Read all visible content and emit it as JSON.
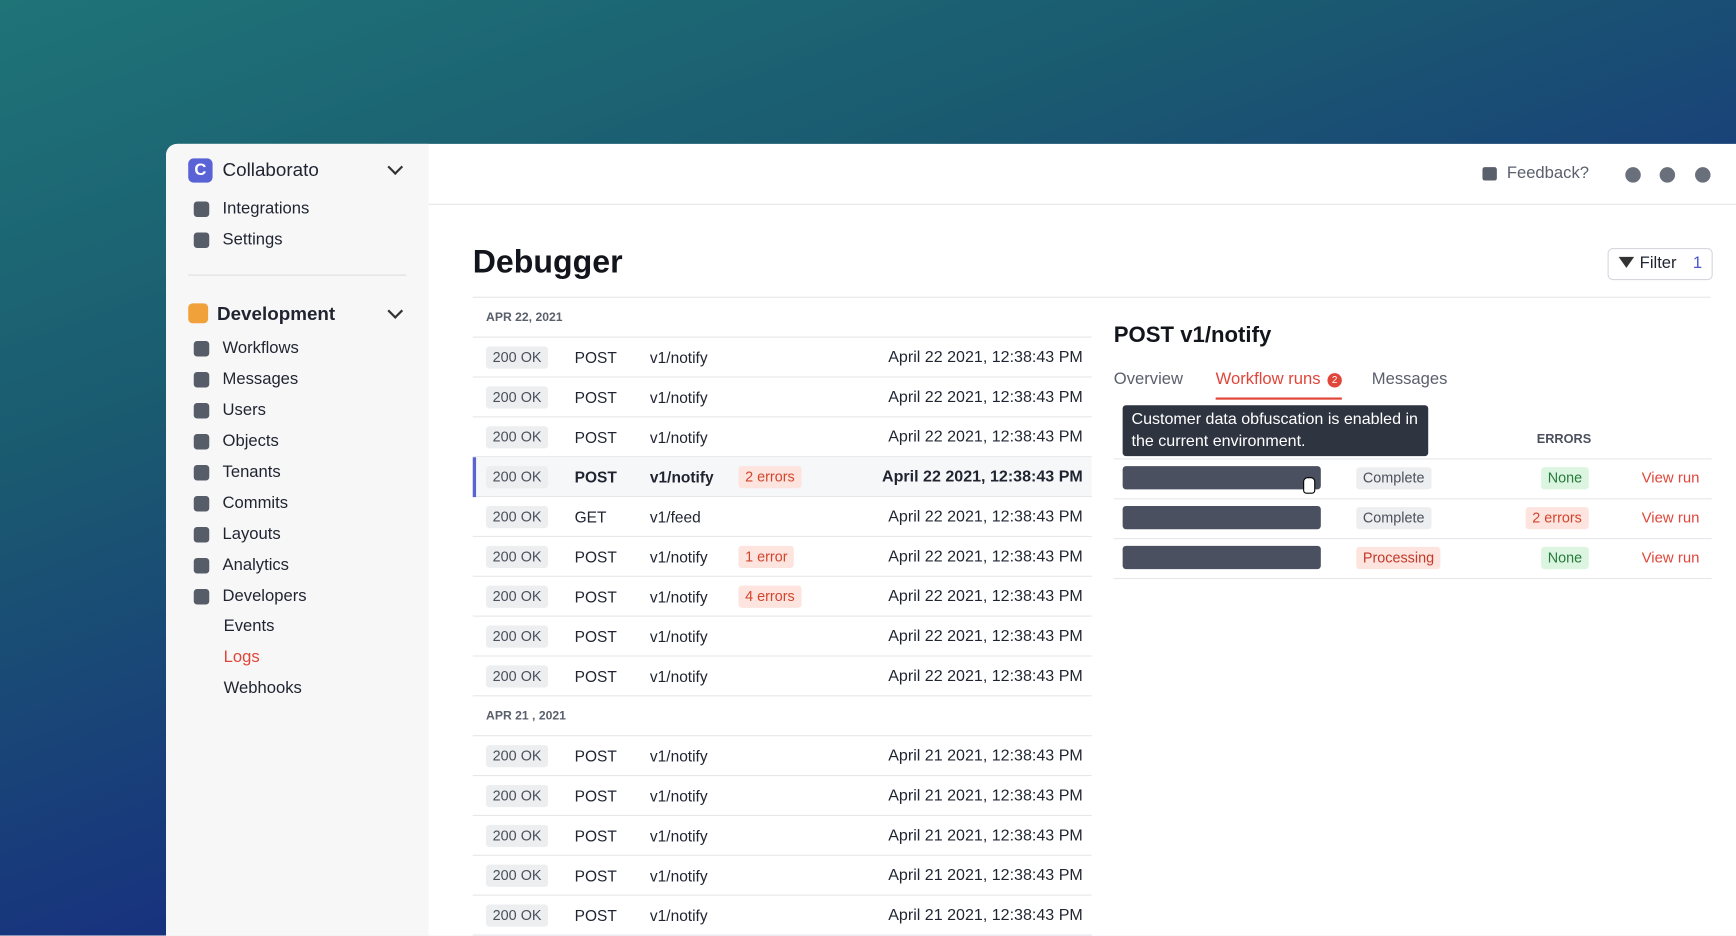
{
  "sidebar": {
    "workspace": "Collaborato",
    "workspace_initial": "C",
    "top_nav": [
      "Integrations",
      "Settings"
    ],
    "environment": "Development",
    "nav": [
      "Workflows",
      "Messages",
      "Users",
      "Objects",
      "Tenants",
      "Commits",
      "Layouts",
      "Analytics",
      "Developers"
    ],
    "sub_nav": [
      "Events",
      "Logs",
      "Webhooks"
    ],
    "active_sub": "Logs"
  },
  "header": {
    "feedback": "Feedback?"
  },
  "main": {
    "title": "Debugger",
    "filter": "Filter",
    "filter_count": "1",
    "groups": [
      {
        "date": "APR 22, 2021",
        "rows": [
          {
            "status": "200 OK",
            "method": "POST",
            "path": "v1/notify",
            "time": "April 22 2021, 12:38:43 PM"
          },
          {
            "status": "200 OK",
            "method": "POST",
            "path": "v1/notify",
            "time": "April 22 2021, 12:38:43 PM"
          },
          {
            "status": "200 OK",
            "method": "POST",
            "path": "v1/notify",
            "time": "April 22 2021, 12:38:43 PM"
          },
          {
            "status": "200 OK",
            "method": "POST",
            "path": "v1/notify",
            "errors": "2 errors",
            "time": "April 22 2021, 12:38:43 PM",
            "selected": true
          },
          {
            "status": "200 OK",
            "method": "GET",
            "path": "v1/feed",
            "time": "April 22 2021, 12:38:43 PM"
          },
          {
            "status": "200 OK",
            "method": "POST",
            "path": "v1/notify",
            "errors": "1 error",
            "time": "April 22 2021, 12:38:43 PM"
          },
          {
            "status": "200 OK",
            "method": "POST",
            "path": "v1/notify",
            "errors": "4 errors",
            "time": "April 22 2021, 12:38:43 PM"
          },
          {
            "status": "200 OK",
            "method": "POST",
            "path": "v1/notify",
            "time": "April 22 2021, 12:38:43 PM"
          },
          {
            "status": "200 OK",
            "method": "POST",
            "path": "v1/notify",
            "time": "April 22 2021, 12:38:43 PM"
          }
        ]
      },
      {
        "date": "APR 21 , 2021",
        "rows": [
          {
            "status": "200 OK",
            "method": "POST",
            "path": "v1/notify",
            "time": "April 21 2021, 12:38:43 PM"
          },
          {
            "status": "200 OK",
            "method": "POST",
            "path": "v1/notify",
            "time": "April 21 2021, 12:38:43 PM"
          },
          {
            "status": "200 OK",
            "method": "POST",
            "path": "v1/notify",
            "time": "April 21 2021, 12:38:43 PM"
          },
          {
            "status": "200 OK",
            "method": "POST",
            "path": "v1/notify",
            "time": "April 21 2021, 12:38:43 PM"
          },
          {
            "status": "200 OK",
            "method": "POST",
            "path": "v1/notify",
            "time": "April 21 2021, 12:38:43 PM"
          }
        ]
      }
    ]
  },
  "detail": {
    "title": "POST v1/notify",
    "tabs": [
      "Overview",
      "Workflow runs",
      "Messages"
    ],
    "active_tab": "Workflow runs",
    "tab_badge": "2",
    "tooltip": "Customer data obfuscation is enabled in the current environment.",
    "errors_header": "ERRORS",
    "runs": [
      {
        "status": "Complete",
        "errors": "None",
        "link": "View run"
      },
      {
        "status": "Complete",
        "errors": "2 errors",
        "link": "View run"
      },
      {
        "status": "Processing",
        "errors": "None",
        "link": "View run"
      }
    ]
  }
}
